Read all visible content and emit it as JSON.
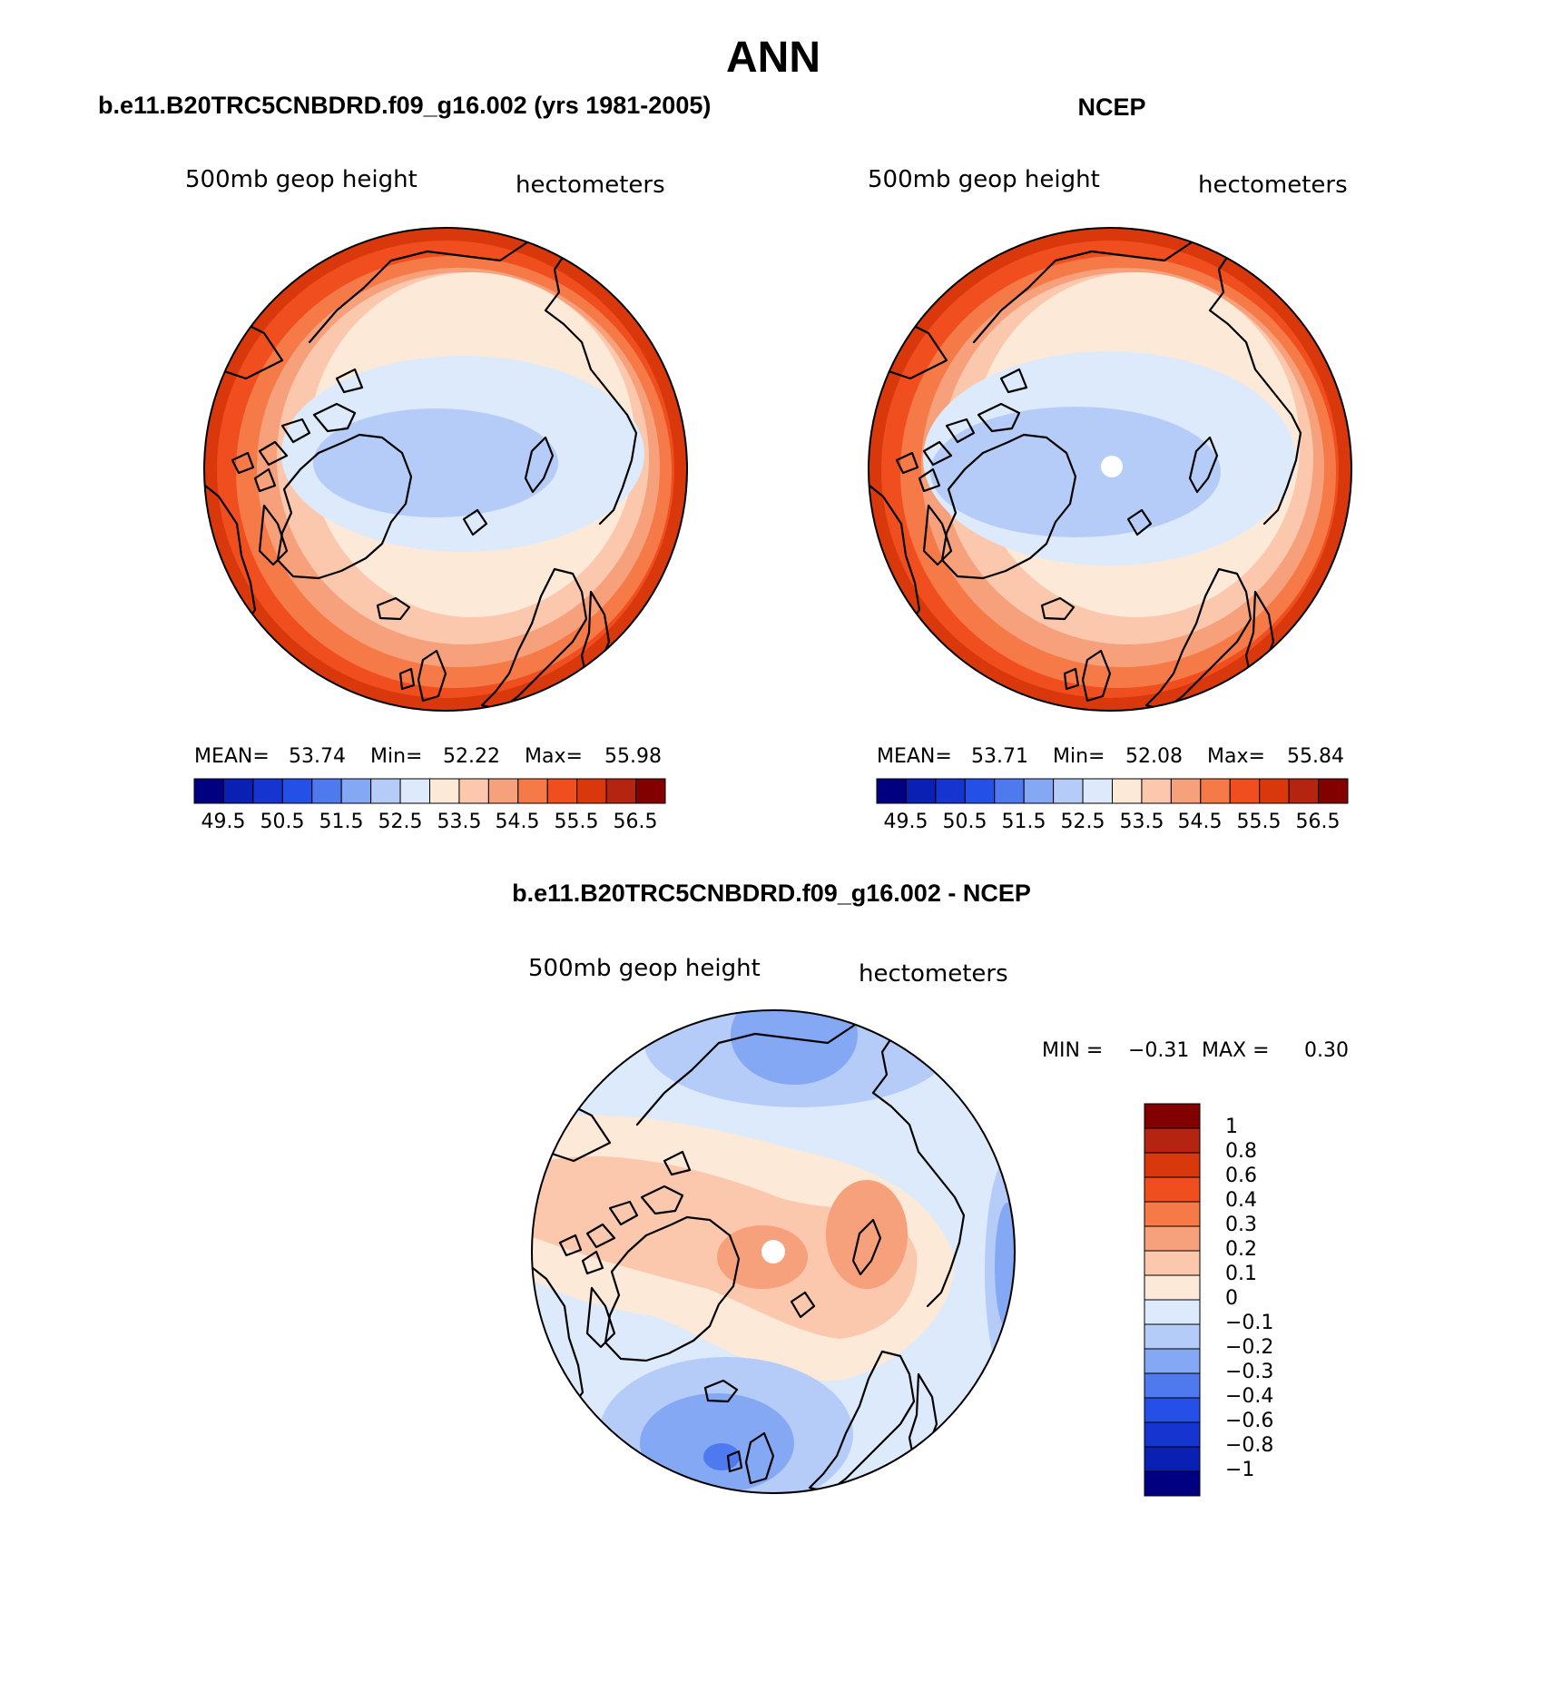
{
  "figure": {
    "title": "ANN"
  },
  "palette_16": [
    "#000080",
    "#0a1fb4",
    "#1534d0",
    "#2550e8",
    "#4f79ee",
    "#85a8f4",
    "#b5ccf8",
    "#dceafc",
    "#fde9d8",
    "#fbc8ae",
    "#f7a07c",
    "#f57a48",
    "#f04e1e",
    "#d9380c",
    "#b52410",
    "#820000"
  ],
  "panels": {
    "model": {
      "title": "b.e11.B20TRC5CNBDRD.f09_g16.002 (yrs 1981-2005)",
      "left_label": "500mb geop height",
      "right_label": "hectometers",
      "stats": {
        "mean_label": "MEAN=",
        "mean": "53.74",
        "min_label": "Min=",
        "min": "52.22",
        "max_label": "Max=",
        "max": "55.98"
      },
      "colorbar_labels": [
        "49.5",
        "50.5",
        "51.5",
        "52.5",
        "53.5",
        "54.5",
        "55.5",
        "56.5"
      ]
    },
    "obs": {
      "title": "NCEP",
      "left_label": "500mb geop height",
      "right_label": "hectometers",
      "stats": {
        "mean_label": "MEAN=",
        "mean": "53.71",
        "min_label": "Min=",
        "min": "52.08",
        "max_label": "Max=",
        "max": "55.84"
      },
      "colorbar_labels": [
        "49.5",
        "50.5",
        "51.5",
        "52.5",
        "53.5",
        "54.5",
        "55.5",
        "56.5"
      ]
    },
    "diff": {
      "title": "b.e11.B20TRC5CNBDRD.f09_g16.002 - NCEP",
      "left_label": "500mb geop height",
      "right_label": "hectometers",
      "min_label": "MIN =",
      "min": "−0.31",
      "max_label": "MAX =",
      "max": "0.30",
      "colorbar_labels": [
        "1",
        "0.8",
        "0.6",
        "0.4",
        "0.3",
        "0.2",
        "0.1",
        "0",
        "−0.1",
        "−0.2",
        "−0.3",
        "−0.4",
        "−0.6",
        "−0.8",
        "−1"
      ],
      "colorbar_colors": [
        "#820000",
        "#b52410",
        "#d9380c",
        "#f04e1e",
        "#f57a48",
        "#f7a07c",
        "#fbc8ae",
        "#fde9d8",
        "#dceafc",
        "#b5ccf8",
        "#85a8f4",
        "#4f79ee",
        "#2550e8",
        "#1534d0",
        "#0a1fb4",
        "#000080"
      ]
    }
  },
  "chart_data": [
    {
      "type": "heatmap",
      "title": "b.e11.B20TRC5CNBDRD.f09_g16.002 (yrs 1981-2005)",
      "variable": "500mb geop height",
      "units": "hectometers",
      "mean": 53.74,
      "min": 52.22,
      "max": 55.98,
      "contour_levels": [
        49.5,
        50.0,
        50.5,
        51.0,
        51.5,
        52.0,
        52.5,
        53.0,
        53.5,
        54.0,
        54.5,
        55.0,
        55.5,
        56.0,
        56.5
      ]
    },
    {
      "type": "heatmap",
      "title": "NCEP",
      "variable": "500mb geop height",
      "units": "hectometers",
      "mean": 53.71,
      "min": 52.08,
      "max": 55.84,
      "contour_levels": [
        49.5,
        50.0,
        50.5,
        51.0,
        51.5,
        52.0,
        52.5,
        53.0,
        53.5,
        54.0,
        54.5,
        55.0,
        55.5,
        56.0,
        56.5
      ]
    },
    {
      "type": "heatmap",
      "title": "b.e11.B20TRC5CNBDRD.f09_g16.002 - NCEP",
      "variable": "500mb geop height",
      "units": "hectometers",
      "min": -0.31,
      "max": 0.3,
      "contour_levels": [
        -1,
        -0.8,
        -0.6,
        -0.4,
        -0.3,
        -0.2,
        -0.1,
        0,
        0.1,
        0.2,
        0.3,
        0.4,
        0.6,
        0.8,
        1
      ]
    }
  ]
}
